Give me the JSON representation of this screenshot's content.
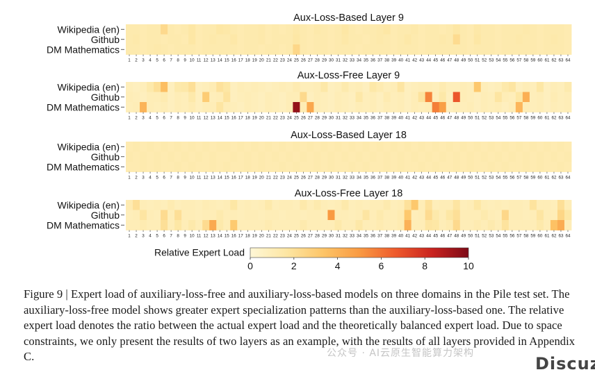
{
  "chart_data": {
    "type": "heatmap",
    "colorbar": {
      "label": "Relative Expert Load",
      "ticks": [
        "0",
        "2",
        "4",
        "6",
        "8",
        "10"
      ],
      "range": [
        0,
        10
      ],
      "colors": [
        "#fff7d6",
        "#fde6a3",
        "#fdc568",
        "#f99a42",
        "#ee5a2c",
        "#c9231f",
        "#7d0a17"
      ]
    },
    "x_categories": [
      "1",
      "2",
      "3",
      "4",
      "5",
      "6",
      "7",
      "8",
      "9",
      "10",
      "11",
      "12",
      "13",
      "14",
      "15",
      "16",
      "17",
      "18",
      "19",
      "20",
      "21",
      "22",
      "23",
      "24",
      "25",
      "26",
      "27",
      "28",
      "29",
      "30",
      "31",
      "32",
      "33",
      "34",
      "35",
      "36",
      "37",
      "38",
      "39",
      "40",
      "41",
      "42",
      "43",
      "44",
      "45",
      "46",
      "47",
      "48",
      "49",
      "50",
      "51",
      "52",
      "53",
      "54",
      "55",
      "56",
      "57",
      "58",
      "59",
      "60",
      "61",
      "62",
      "63",
      "64"
    ],
    "y_categories": [
      "Wikipedia (en)",
      "Github",
      "DM Mathematics"
    ],
    "panels": [
      {
        "title": "Aux-Loss-Based Layer 9",
        "rows": [
          [
            1.3,
            1.3,
            1.2,
            1.3,
            1.3,
            2.3,
            1.3,
            1.2,
            1.3,
            1.6,
            1.2,
            1.3,
            1.3,
            1.6,
            1.5,
            1.3,
            1.2,
            1.3,
            1.3,
            1.4,
            1.2,
            1.3,
            1.2,
            1.3,
            1.5,
            1.3,
            1.2,
            1.4,
            1.3,
            1.2,
            1.3,
            1.6,
            1.3,
            1.2,
            1.3,
            1.3,
            1.4,
            1.6,
            1.2,
            1.3,
            1.3,
            1.4,
            1.2,
            1.3,
            1.3,
            1.2,
            1.3,
            1.6,
            1.3,
            1.2,
            1.5,
            1.3,
            1.3,
            1.2,
            1.3,
            1.3,
            1.3,
            1.4,
            1.3,
            1.2,
            1.3,
            1.3,
            1.3,
            1.2
          ],
          [
            1.3,
            1.4,
            1.2,
            1.3,
            1.3,
            1.2,
            1.3,
            1.3,
            1.2,
            1.6,
            1.2,
            1.3,
            1.4,
            1.3,
            1.3,
            1.5,
            1.2,
            1.3,
            1.3,
            1.4,
            1.2,
            1.3,
            1.3,
            1.3,
            1.6,
            1.3,
            1.2,
            1.3,
            1.3,
            1.2,
            1.3,
            1.5,
            1.3,
            1.3,
            1.2,
            1.3,
            1.4,
            1.3,
            1.2,
            1.3,
            1.5,
            1.3,
            1.2,
            1.3,
            1.3,
            1.4,
            1.3,
            2.2,
            1.3,
            1.2,
            1.6,
            1.3,
            1.3,
            1.2,
            1.3,
            1.3,
            1.4,
            1.3,
            1.3,
            1.2,
            1.3,
            1.4,
            1.3,
            1.2
          ],
          [
            1.3,
            1.3,
            1.2,
            1.3,
            1.4,
            1.3,
            1.2,
            1.3,
            1.3,
            1.3,
            1.2,
            1.3,
            1.3,
            1.3,
            1.3,
            1.3,
            1.2,
            1.3,
            1.3,
            1.2,
            1.3,
            1.3,
            1.2,
            1.3,
            2.4,
            1.3,
            1.2,
            1.3,
            1.3,
            1.2,
            1.3,
            1.3,
            1.3,
            1.2,
            1.3,
            1.3,
            1.3,
            1.3,
            1.2,
            1.3,
            1.3,
            1.3,
            1.2,
            1.3,
            1.3,
            1.3,
            1.3,
            1.3,
            1.3,
            1.2,
            1.3,
            1.3,
            1.3,
            1.2,
            1.3,
            1.3,
            1.3,
            1.3,
            1.3,
            1.2,
            1.3,
            1.3,
            1.3,
            1.2
          ]
        ]
      },
      {
        "title": "Aux-Loss-Free Layer 9",
        "rows": [
          [
            0.9,
            0.8,
            0.9,
            1.4,
            2.0,
            3.6,
            0.8,
            1.4,
            1.5,
            2.0,
            0.8,
            0.9,
            1.1,
            1.9,
            1.6,
            0.8,
            1.0,
            0.9,
            1.0,
            0.9,
            0.8,
            0.9,
            1.0,
            0.9,
            1.2,
            0.9,
            0.9,
            1.0,
            1.5,
            0.8,
            0.9,
            1.3,
            0.9,
            1.0,
            0.8,
            1.5,
            1.2,
            0.9,
            1.0,
            1.7,
            0.8,
            0.9,
            1.0,
            1.0,
            0.9,
            1.2,
            0.9,
            0.9,
            1.0,
            0.9,
            3.2,
            0.9,
            0.8,
            0.9,
            1.4,
            1.7,
            0.8,
            1.0,
            0.9,
            1.6,
            0.8,
            1.0,
            0.9,
            1.3
          ],
          [
            1.0,
            0.9,
            0.8,
            1.0,
            1.0,
            1.2,
            0.8,
            1.0,
            0.9,
            1.4,
            0.8,
            3.0,
            0.9,
            1.0,
            1.8,
            0.8,
            0.9,
            1.0,
            0.9,
            0.8,
            1.0,
            0.9,
            0.8,
            1.0,
            1.0,
            2.3,
            0.8,
            1.0,
            0.9,
            0.8,
            1.0,
            0.9,
            0.8,
            1.5,
            0.9,
            1.0,
            0.8,
            1.2,
            0.9,
            1.0,
            0.8,
            1.0,
            1.8,
            5.6,
            0.9,
            1.5,
            0.8,
            6.8,
            1.0,
            0.9,
            0.8,
            1.0,
            0.9,
            1.7,
            1.0,
            0.9,
            1.6,
            4.2,
            0.9,
            1.0,
            0.8,
            1.1,
            0.9,
            1.0
          ],
          [
            0.9,
            1.0,
            4.0,
            1.0,
            0.9,
            1.0,
            0.8,
            1.0,
            0.9,
            1.1,
            0.8,
            1.0,
            1.0,
            1.7,
            1.0,
            0.9,
            0.8,
            1.0,
            0.9,
            0.8,
            1.0,
            0.9,
            0.8,
            1.0,
            9.5,
            1.1,
            4.5,
            1.0,
            0.9,
            0.8,
            1.0,
            0.9,
            0.8,
            1.0,
            0.9,
            1.0,
            0.8,
            1.0,
            0.9,
            1.0,
            0.8,
            1.0,
            0.9,
            1.0,
            5.7,
            4.8,
            0.8,
            1.0,
            0.9,
            1.0,
            0.8,
            1.0,
            0.9,
            1.0,
            0.8,
            1.0,
            3.9,
            1.0,
            0.9,
            1.0,
            0.8,
            1.0,
            0.9,
            1.0
          ]
        ]
      },
      {
        "title": "Aux-Loss-Based Layer 18",
        "rows": [
          [
            1.2,
            1.3,
            1.2,
            1.3,
            1.2,
            1.3,
            1.2,
            1.3,
            1.2,
            1.3,
            1.2,
            1.3,
            1.2,
            1.3,
            1.3,
            1.2,
            1.3,
            1.2,
            1.3,
            1.2,
            1.3,
            1.2,
            1.3,
            1.2,
            1.3,
            1.2,
            1.3,
            1.2,
            1.3,
            1.2,
            1.3,
            1.2,
            1.3,
            1.2,
            1.3,
            1.2,
            1.3,
            1.2,
            1.3,
            1.2,
            1.3,
            1.2,
            1.3,
            1.2,
            1.3,
            1.2,
            1.3,
            1.2,
            1.3,
            1.2,
            1.3,
            1.2,
            1.3,
            1.2,
            1.3,
            1.2,
            1.3,
            1.2,
            1.3,
            1.2,
            1.3,
            1.2,
            1.3,
            1.2
          ],
          [
            1.3,
            1.2,
            1.3,
            1.2,
            1.3,
            1.2,
            1.3,
            1.2,
            1.3,
            1.2,
            1.3,
            1.2,
            1.3,
            1.2,
            1.2,
            1.3,
            1.2,
            1.3,
            1.2,
            1.3,
            1.2,
            1.3,
            1.2,
            1.3,
            1.2,
            1.3,
            1.2,
            1.3,
            1.2,
            1.3,
            1.2,
            1.3,
            1.2,
            1.3,
            1.2,
            1.3,
            1.2,
            1.3,
            1.2,
            1.3,
            1.2,
            1.3,
            1.2,
            1.3,
            1.2,
            1.3,
            1.2,
            1.3,
            1.2,
            1.3,
            1.2,
            1.3,
            1.2,
            1.3,
            1.2,
            1.3,
            1.2,
            1.3,
            1.2,
            1.3,
            1.2,
            1.3,
            1.2,
            1.3
          ],
          [
            1.2,
            1.2,
            1.3,
            1.2,
            1.3,
            1.2,
            1.2,
            1.3,
            1.2,
            1.3,
            1.2,
            1.2,
            1.3,
            1.2,
            1.3,
            1.2,
            1.2,
            1.3,
            1.2,
            1.3,
            1.2,
            1.2,
            1.3,
            1.2,
            1.3,
            1.2,
            1.2,
            1.3,
            1.2,
            1.3,
            1.2,
            1.2,
            1.3,
            1.2,
            1.3,
            1.2,
            1.2,
            1.3,
            1.2,
            1.3,
            1.2,
            1.2,
            1.3,
            1.2,
            1.3,
            1.2,
            1.2,
            1.3,
            1.2,
            1.3,
            1.2,
            1.2,
            1.3,
            1.2,
            1.3,
            1.2,
            1.2,
            1.3,
            1.2,
            1.3,
            1.2,
            1.2,
            1.3,
            1.2
          ]
        ]
      },
      {
        "title": "Aux-Loss-Free Layer 18",
        "rows": [
          [
            1.2,
            2.0,
            1.0,
            0.9,
            1.0,
            0.9,
            1.2,
            0.9,
            1.0,
            1.0,
            0.9,
            1.1,
            1.0,
            0.9,
            1.0,
            1.6,
            0.9,
            1.0,
            0.9,
            1.0,
            1.4,
            0.9,
            1.0,
            1.0,
            0.9,
            1.4,
            1.0,
            1.3,
            1.0,
            0.9,
            1.0,
            1.4,
            0.9,
            1.0,
            0.9,
            1.0,
            1.0,
            1.3,
            0.9,
            1.0,
            1.9,
            3.2,
            1.0,
            1.9,
            0.9,
            1.0,
            1.0,
            1.7,
            0.9,
            1.0,
            1.6,
            1.0,
            0.9,
            1.0,
            0.9,
            1.0,
            1.0,
            0.9,
            1.8,
            1.0,
            1.0,
            0.9,
            2.0,
            1.0
          ],
          [
            0.9,
            1.0,
            1.7,
            1.0,
            0.9,
            2.2,
            1.0,
            2.0,
            1.0,
            1.0,
            0.9,
            1.0,
            1.0,
            1.3,
            1.0,
            1.0,
            0.9,
            1.0,
            1.0,
            0.9,
            1.0,
            1.0,
            0.9,
            1.0,
            1.0,
            0.9,
            1.0,
            1.0,
            0.9,
            5.0,
            1.0,
            1.0,
            0.9,
            1.0,
            1.7,
            1.0,
            1.3,
            1.0,
            1.0,
            1.2,
            3.2,
            0.9,
            1.0,
            2.2,
            1.4,
            1.0,
            1.6,
            2.0,
            1.0,
            1.0,
            1.0,
            1.3,
            1.0,
            0.9,
            2.4,
            1.0,
            1.0,
            0.9,
            1.0,
            1.7,
            1.0,
            1.0,
            2.5,
            1.6
          ],
          [
            1.0,
            1.0,
            1.2,
            1.0,
            1.0,
            2.0,
            1.0,
            1.6,
            1.0,
            1.4,
            1.0,
            2.2,
            4.4,
            1.4,
            1.0,
            3.1,
            1.0,
            1.0,
            1.0,
            1.0,
            1.2,
            1.0,
            1.0,
            1.0,
            1.0,
            1.3,
            1.0,
            1.0,
            1.0,
            1.0,
            1.4,
            1.0,
            1.0,
            1.5,
            1.0,
            1.0,
            1.2,
            1.0,
            1.0,
            1.2,
            4.1,
            1.0,
            1.0,
            1.7,
            1.6,
            1.0,
            1.2,
            2.3,
            1.0,
            1.0,
            1.2,
            1.0,
            1.3,
            1.0,
            1.8,
            1.0,
            1.0,
            1.0,
            1.0,
            1.4,
            1.0,
            3.5,
            4.3,
            1.0
          ]
        ]
      }
    ]
  },
  "caption": "Figure 9 | Expert load of auxiliary-loss-free and auxiliary-loss-based models on three domains in the Pile test set. The auxiliary-loss-free model shows greater expert specialization patterns than the auxiliary-loss-based one. The relative expert load denotes the ratio between the actual expert load and the theoretically balanced expert load. Due to space constraints, we only present the results of two layers as an example, with the results of all layers provided in Appendix C.",
  "watermark": {
    "text": "公众号 · AI云原生智能算力架构",
    "logo": "Discuz!"
  }
}
